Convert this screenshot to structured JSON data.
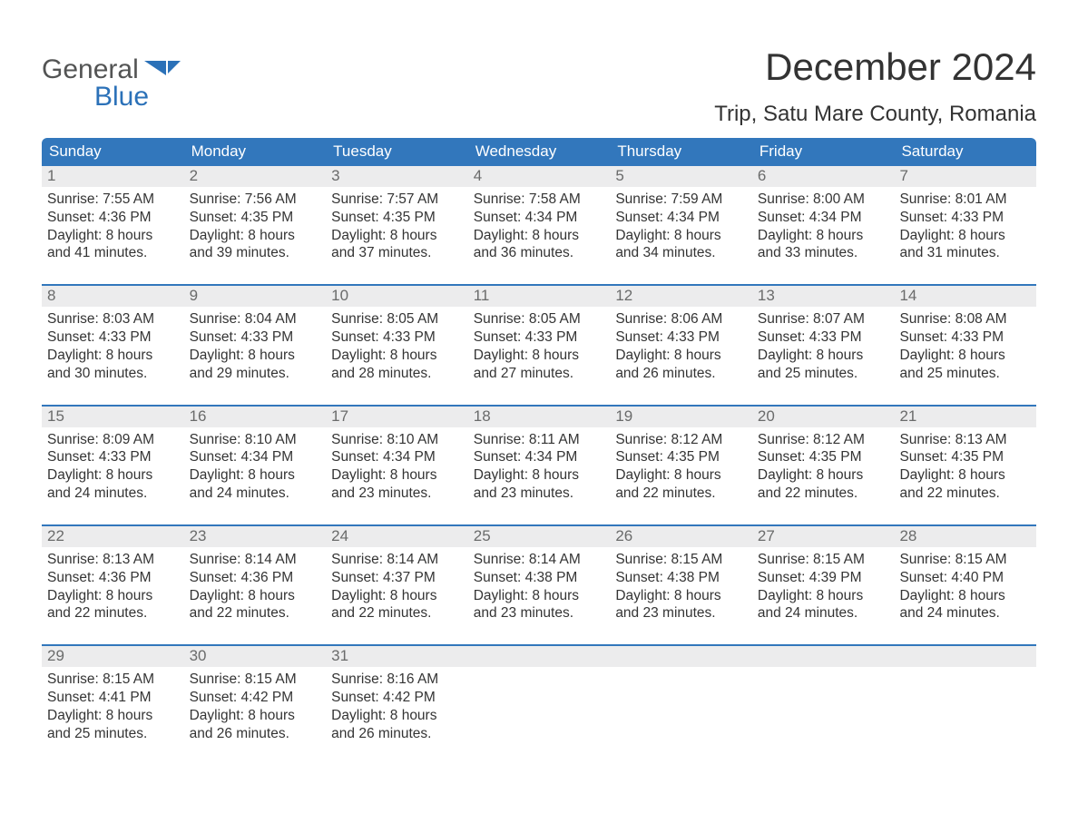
{
  "logo": {
    "word1": "General",
    "word2": "Blue",
    "word1_color": "#535454",
    "word2_color": "#2b71b8",
    "flag_color": "#2b71b8"
  },
  "title": "December 2024",
  "location": "Trip, Satu Mare County, Romania",
  "colors": {
    "header_bg": "#3277bc",
    "header_text": "#ffffff",
    "daynum_bg": "#ececed",
    "daynum_text": "#6a6b6b",
    "body_text": "#343434",
    "week_border": "#3277bc",
    "page_bg": "#ffffff"
  },
  "typography": {
    "title_fontsize": 42,
    "location_fontsize": 24,
    "header_fontsize": 17,
    "daynum_fontsize": 17,
    "body_fontsize": 15.5,
    "font_family": "Arial"
  },
  "day_headers": [
    "Sunday",
    "Monday",
    "Tuesday",
    "Wednesday",
    "Thursday",
    "Friday",
    "Saturday"
  ],
  "weeks": [
    [
      {
        "num": "1",
        "sunrise": "7:55 AM",
        "sunset": "4:36 PM",
        "daylight_h": 8,
        "daylight_m": 41
      },
      {
        "num": "2",
        "sunrise": "7:56 AM",
        "sunset": "4:35 PM",
        "daylight_h": 8,
        "daylight_m": 39
      },
      {
        "num": "3",
        "sunrise": "7:57 AM",
        "sunset": "4:35 PM",
        "daylight_h": 8,
        "daylight_m": 37
      },
      {
        "num": "4",
        "sunrise": "7:58 AM",
        "sunset": "4:34 PM",
        "daylight_h": 8,
        "daylight_m": 36
      },
      {
        "num": "5",
        "sunrise": "7:59 AM",
        "sunset": "4:34 PM",
        "daylight_h": 8,
        "daylight_m": 34
      },
      {
        "num": "6",
        "sunrise": "8:00 AM",
        "sunset": "4:34 PM",
        "daylight_h": 8,
        "daylight_m": 33
      },
      {
        "num": "7",
        "sunrise": "8:01 AM",
        "sunset": "4:33 PM",
        "daylight_h": 8,
        "daylight_m": 31
      }
    ],
    [
      {
        "num": "8",
        "sunrise": "8:03 AM",
        "sunset": "4:33 PM",
        "daylight_h": 8,
        "daylight_m": 30
      },
      {
        "num": "9",
        "sunrise": "8:04 AM",
        "sunset": "4:33 PM",
        "daylight_h": 8,
        "daylight_m": 29
      },
      {
        "num": "10",
        "sunrise": "8:05 AM",
        "sunset": "4:33 PM",
        "daylight_h": 8,
        "daylight_m": 28
      },
      {
        "num": "11",
        "sunrise": "8:05 AM",
        "sunset": "4:33 PM",
        "daylight_h": 8,
        "daylight_m": 27
      },
      {
        "num": "12",
        "sunrise": "8:06 AM",
        "sunset": "4:33 PM",
        "daylight_h": 8,
        "daylight_m": 26
      },
      {
        "num": "13",
        "sunrise": "8:07 AM",
        "sunset": "4:33 PM",
        "daylight_h": 8,
        "daylight_m": 25
      },
      {
        "num": "14",
        "sunrise": "8:08 AM",
        "sunset": "4:33 PM",
        "daylight_h": 8,
        "daylight_m": 25
      }
    ],
    [
      {
        "num": "15",
        "sunrise": "8:09 AM",
        "sunset": "4:33 PM",
        "daylight_h": 8,
        "daylight_m": 24
      },
      {
        "num": "16",
        "sunrise": "8:10 AM",
        "sunset": "4:34 PM",
        "daylight_h": 8,
        "daylight_m": 24
      },
      {
        "num": "17",
        "sunrise": "8:10 AM",
        "sunset": "4:34 PM",
        "daylight_h": 8,
        "daylight_m": 23
      },
      {
        "num": "18",
        "sunrise": "8:11 AM",
        "sunset": "4:34 PM",
        "daylight_h": 8,
        "daylight_m": 23
      },
      {
        "num": "19",
        "sunrise": "8:12 AM",
        "sunset": "4:35 PM",
        "daylight_h": 8,
        "daylight_m": 22
      },
      {
        "num": "20",
        "sunrise": "8:12 AM",
        "sunset": "4:35 PM",
        "daylight_h": 8,
        "daylight_m": 22
      },
      {
        "num": "21",
        "sunrise": "8:13 AM",
        "sunset": "4:35 PM",
        "daylight_h": 8,
        "daylight_m": 22
      }
    ],
    [
      {
        "num": "22",
        "sunrise": "8:13 AM",
        "sunset": "4:36 PM",
        "daylight_h": 8,
        "daylight_m": 22
      },
      {
        "num": "23",
        "sunrise": "8:14 AM",
        "sunset": "4:36 PM",
        "daylight_h": 8,
        "daylight_m": 22
      },
      {
        "num": "24",
        "sunrise": "8:14 AM",
        "sunset": "4:37 PM",
        "daylight_h": 8,
        "daylight_m": 22
      },
      {
        "num": "25",
        "sunrise": "8:14 AM",
        "sunset": "4:38 PM",
        "daylight_h": 8,
        "daylight_m": 23
      },
      {
        "num": "26",
        "sunrise": "8:15 AM",
        "sunset": "4:38 PM",
        "daylight_h": 8,
        "daylight_m": 23
      },
      {
        "num": "27",
        "sunrise": "8:15 AM",
        "sunset": "4:39 PM",
        "daylight_h": 8,
        "daylight_m": 24
      },
      {
        "num": "28",
        "sunrise": "8:15 AM",
        "sunset": "4:40 PM",
        "daylight_h": 8,
        "daylight_m": 24
      }
    ],
    [
      {
        "num": "29",
        "sunrise": "8:15 AM",
        "sunset": "4:41 PM",
        "daylight_h": 8,
        "daylight_m": 25
      },
      {
        "num": "30",
        "sunrise": "8:15 AM",
        "sunset": "4:42 PM",
        "daylight_h": 8,
        "daylight_m": 26
      },
      {
        "num": "31",
        "sunrise": "8:16 AM",
        "sunset": "4:42 PM",
        "daylight_h": 8,
        "daylight_m": 26
      },
      {
        "empty": true
      },
      {
        "empty": true
      },
      {
        "empty": true
      },
      {
        "empty": true
      }
    ]
  ],
  "labels": {
    "sunrise_prefix": "Sunrise: ",
    "sunset_prefix": "Sunset: ",
    "daylight_prefix": "Daylight: ",
    "hours_word": " hours",
    "and_word": "and ",
    "minutes_word": " minutes."
  }
}
